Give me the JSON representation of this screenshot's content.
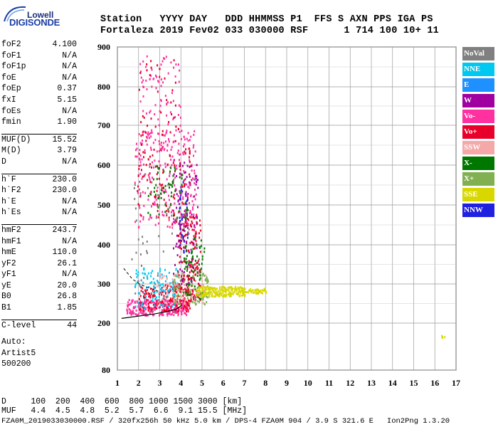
{
  "logo": {
    "top": "Lowell",
    "bottom": "DIGISONDE"
  },
  "header": {
    "row1": "Station   YYYY DAY   DDD HHMMSS P1  FFS S AXN PPS IGA PS",
    "row2": "Fortaleza 2019 Fev02 033 030000 RSF      1 714 100 10+ 11"
  },
  "params": {
    "block1": [
      {
        "label": "foF2",
        "value": "4.100"
      },
      {
        "label": "foF1",
        "value": "N/A"
      },
      {
        "label": "foF1p",
        "value": "N/A"
      },
      {
        "label": "foE",
        "value": "N/A"
      },
      {
        "label": "foEp",
        "value": "0.37"
      },
      {
        "label": "fxI",
        "value": "5.15"
      },
      {
        "label": "foEs",
        "value": "N/A"
      },
      {
        "label": "fmin",
        "value": "1.90"
      }
    ],
    "block2": [
      {
        "label": "MUF(D)",
        "value": "15.52"
      },
      {
        "label": "M(D)",
        "value": "3.79"
      },
      {
        "label": "D",
        "value": "N/A"
      }
    ],
    "block3": [
      {
        "label": "h`F",
        "value": "230.0"
      },
      {
        "label": "h`F2",
        "value": "230.0"
      },
      {
        "label": "h`E",
        "value": "N/A"
      },
      {
        "label": "h`Es",
        "value": "N/A"
      }
    ],
    "block4": [
      {
        "label": "hmF2",
        "value": "243.7"
      },
      {
        "label": "hmF1",
        "value": "N/A"
      },
      {
        "label": "hmE",
        "value": "110.0"
      },
      {
        "label": "yF2",
        "value": "26.1"
      },
      {
        "label": "yF1",
        "value": "N/A"
      },
      {
        "label": "yE",
        "value": "20.0"
      },
      {
        "label": "B0",
        "value": "26.8"
      },
      {
        "label": "B1",
        "value": "1.85"
      }
    ],
    "clevel": {
      "label": "C-level",
      "value": "44"
    },
    "auto": [
      "Auto:",
      "Artist5",
      "500200"
    ]
  },
  "legend": [
    {
      "label": "NoVal",
      "color": "#808080"
    },
    {
      "label": "NNE",
      "color": "#00c8f0"
    },
    {
      "label": "E",
      "color": "#1e90ff"
    },
    {
      "label": "W",
      "color": "#a000a0"
    },
    {
      "label": "Vo-",
      "color": "#ff30a0"
    },
    {
      "label": "Vo+",
      "color": "#e8002a"
    },
    {
      "label": "SSW",
      "color": "#f4a8a8"
    },
    {
      "label": "X-",
      "color": "#007800"
    },
    {
      "label": "X+",
      "color": "#80b050"
    },
    {
      "label": "SSE",
      "color": "#d8d800"
    },
    {
      "label": "NNW",
      "color": "#2020e0"
    }
  ],
  "chart_data": {
    "type": "scatter",
    "xlabel": "",
    "ylabel": "",
    "xlim": [
      1,
      17
    ],
    "ylim": [
      80,
      900
    ],
    "x_ticks": [
      "1",
      "2",
      "3",
      "4",
      "5",
      "6",
      "7",
      "8",
      "9",
      "10",
      "11",
      "12",
      "13",
      "14",
      "15",
      "16",
      "17"
    ],
    "y_ticks": [
      80,
      200,
      300,
      400,
      500,
      600,
      700,
      800,
      900
    ],
    "y_scale": "log-like (virtual height, km)",
    "grid": true,
    "profile_curve": [
      [
        1.2,
        212
      ],
      [
        2.0,
        218
      ],
      [
        2.8,
        224
      ],
      [
        3.4,
        230
      ],
      [
        3.8,
        236
      ],
      [
        4.05,
        246
      ]
    ],
    "profile_curve_upper": [
      [
        1.3,
        340
      ],
      [
        1.7,
        313
      ],
      [
        2.1,
        298
      ],
      [
        2.5,
        290
      ],
      [
        2.9,
        282
      ]
    ],
    "clusters": [
      {
        "name": "F trace low",
        "color": "#ff30a0",
        "x0": 1.4,
        "x1": 4.3,
        "h0": 222,
        "h1": 262,
        "n": 260
      },
      {
        "name": "F trace low vo+",
        "color": "#e8002a",
        "x0": 2.0,
        "x1": 4.5,
        "h0": 232,
        "h1": 300,
        "n": 180
      },
      {
        "name": "F trace nne",
        "color": "#00c8f0",
        "x0": 1.8,
        "x1": 3.8,
        "h0": 240,
        "h1": 345,
        "n": 110
      },
      {
        "name": "F trace x+",
        "color": "#80b050",
        "x0": 3.6,
        "x1": 5.3,
        "h0": 250,
        "h1": 330,
        "n": 110
      },
      {
        "name": "F cusp",
        "color": "#e8002a",
        "x0": 3.8,
        "x1": 4.9,
        "h0": 260,
        "h1": 480,
        "n": 160
      },
      {
        "name": "F cusp w",
        "color": "#a000a0",
        "x0": 3.6,
        "x1": 4.8,
        "h0": 300,
        "h1": 620,
        "n": 110
      },
      {
        "name": "F cusp nnw",
        "color": "#2020e0",
        "x0": 3.9,
        "x1": 4.3,
        "h0": 380,
        "h1": 560,
        "n": 40
      },
      {
        "name": "F cusp x-",
        "color": "#007800",
        "x0": 4.1,
        "x1": 5.1,
        "h0": 260,
        "h1": 420,
        "n": 70
      },
      {
        "name": "F2 multi",
        "color": "#ff30a0",
        "x0": 1.8,
        "x1": 4.7,
        "h0": 445,
        "h1": 690,
        "n": 230
      },
      {
        "name": "F2 multi vo+",
        "color": "#e8002a",
        "x0": 1.9,
        "x1": 4.5,
        "h0": 450,
        "h1": 650,
        "n": 100
      },
      {
        "name": "F2 multi x-",
        "color": "#007800",
        "x0": 2.4,
        "x1": 4.3,
        "h0": 470,
        "h1": 600,
        "n": 60
      },
      {
        "name": "F3 multi",
        "color": "#ff30a0",
        "x0": 2.0,
        "x1": 4.0,
        "h0": 640,
        "h1": 880,
        "n": 90
      },
      {
        "name": "F3 multi vo+",
        "color": "#e8002a",
        "x0": 2.0,
        "x1": 3.9,
        "h0": 650,
        "h1": 870,
        "n": 40
      },
      {
        "name": "spread sse",
        "color": "#d8d800",
        "x0": 4.7,
        "x1": 7.0,
        "h0": 270,
        "h1": 295,
        "n": 220
      },
      {
        "name": "spread sse ext",
        "color": "#d8d800",
        "x0": 7.0,
        "x1": 8.0,
        "h0": 278,
        "h1": 290,
        "n": 40
      },
      {
        "name": "ssw",
        "color": "#f4a8a8",
        "x0": 2.8,
        "x1": 5.2,
        "h0": 250,
        "h1": 330,
        "n": 60
      },
      {
        "name": "noval",
        "color": "#808080",
        "x0": 1.6,
        "x1": 5.0,
        "h0": 230,
        "h1": 600,
        "n": 60
      },
      {
        "name": "isolated",
        "color": "#d8d800",
        "x0": 16.3,
        "x1": 16.5,
        "h0": 165,
        "h1": 170,
        "n": 4
      }
    ]
  },
  "footer": {
    "d_row": "D     100  200  400  600  800 1000 1500 3000 [km]",
    "muf_row": "MUF   4.4  4.5  4.8  5.2  5.7  6.6  9.1 15.5 [MHz]",
    "file_row": "FZA0M_2019033030000.RSF / 320fx256h 50 kHz 5.0 km / DPS-4 FZA0M 904 / 3.9 S 321.6 E   Ion2Png 1.3.20"
  }
}
